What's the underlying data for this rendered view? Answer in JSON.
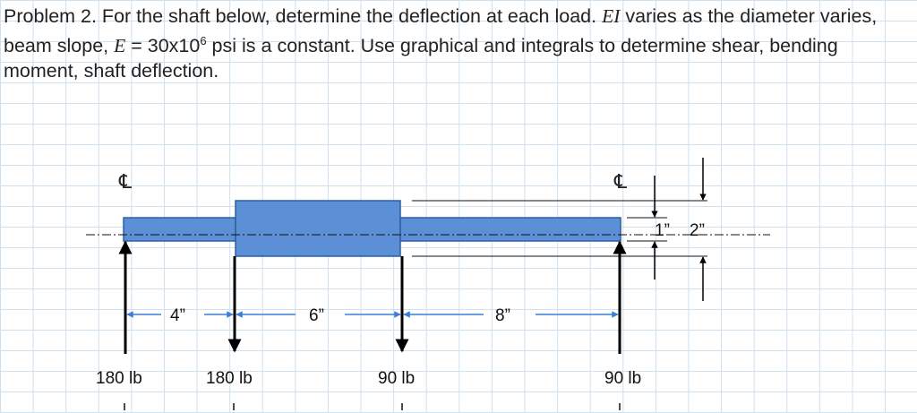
{
  "problem": {
    "intro": "Problem 2. For the shaft below, determine the deflection at each load. ",
    "ei": "EI",
    "mid": " varies as the diameter varies, beam slope, ",
    "e": "E",
    "eq": " = 30x10",
    "exp": "6",
    "rest": " psi is a constant. Use graphical and integrals to determine shear, bending moment, shaft deflection."
  },
  "diagram": {
    "centerline_symbol": "℄",
    "dimensions": {
      "seg1": "4”",
      "seg2": "6”",
      "seg3": "8”",
      "small_diameter": "1”",
      "large_diameter": "2”"
    },
    "loads": {
      "left_reaction": "180 lb",
      "load_1": "180 lb",
      "load_2": "90 lb",
      "right_reaction": "90 lb"
    },
    "colors": {
      "shaft_fill": "#5b8fd6",
      "shaft_stroke": "#2f5f9e",
      "dimension_arrow": "#3a7fd5",
      "grid": "#cfe0ee"
    }
  }
}
